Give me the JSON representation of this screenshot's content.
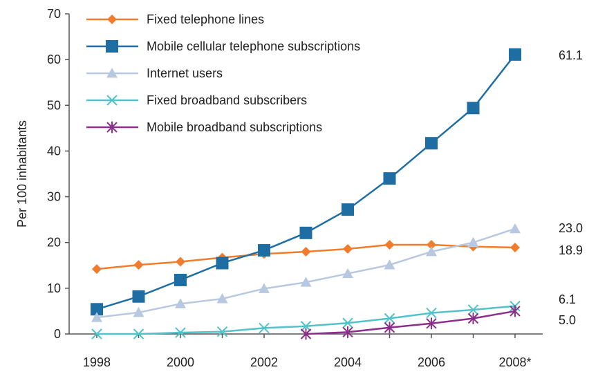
{
  "chart_data": {
    "type": "line",
    "title": "",
    "xlabel": "",
    "ylabel": "Per 100 inhabitants",
    "ylim": [
      0,
      70
    ],
    "yticks": [
      0,
      10,
      20,
      30,
      40,
      50,
      60,
      70
    ],
    "x": [
      "1998",
      "1999",
      "2000",
      "2001",
      "2002",
      "2003",
      "2004",
      "2005",
      "2006",
      "2007",
      "2008*"
    ],
    "xtick_labels": [
      "1998",
      "",
      "2000",
      "",
      "2002",
      "",
      "2004",
      "",
      "2006",
      "",
      "2008*"
    ],
    "grid": false,
    "legend_position": "top-left",
    "series": [
      {
        "name": "Fixed telephone lines",
        "color": "#f07c2c",
        "marker": "diamond",
        "values": [
          14.2,
          15.1,
          15.8,
          16.7,
          17.5,
          18.0,
          18.6,
          19.5,
          19.5,
          19.1,
          18.9
        ],
        "end_label": "18.9"
      },
      {
        "name": "Mobile cellular telephone subscriptions",
        "color": "#1f6ea3",
        "marker": "square",
        "values": [
          5.4,
          8.2,
          11.8,
          15.5,
          18.3,
          22.1,
          27.2,
          34.0,
          41.7,
          49.4,
          61.1
        ],
        "end_label": "61.1"
      },
      {
        "name": "Internet users",
        "color": "#b8c8e0",
        "marker": "triangle",
        "values": [
          3.6,
          4.7,
          6.6,
          7.7,
          9.9,
          11.3,
          13.2,
          15.1,
          18.0,
          20.0,
          23.0
        ],
        "end_label": "23.0"
      },
      {
        "name": "Fixed broadband subscribers",
        "color": "#4fc3c8",
        "marker": "x",
        "values": [
          0.0,
          0.0,
          0.3,
          0.5,
          1.3,
          1.7,
          2.4,
          3.4,
          4.6,
          5.3,
          6.1
        ],
        "end_label": "6.1"
      },
      {
        "name": "Mobile broadband subscriptions",
        "color": "#8b2f8b",
        "marker": "star",
        "values": [
          null,
          null,
          null,
          null,
          null,
          0.0,
          0.4,
          1.4,
          2.3,
          3.4,
          5.0
        ],
        "end_label": "5.0"
      }
    ]
  }
}
